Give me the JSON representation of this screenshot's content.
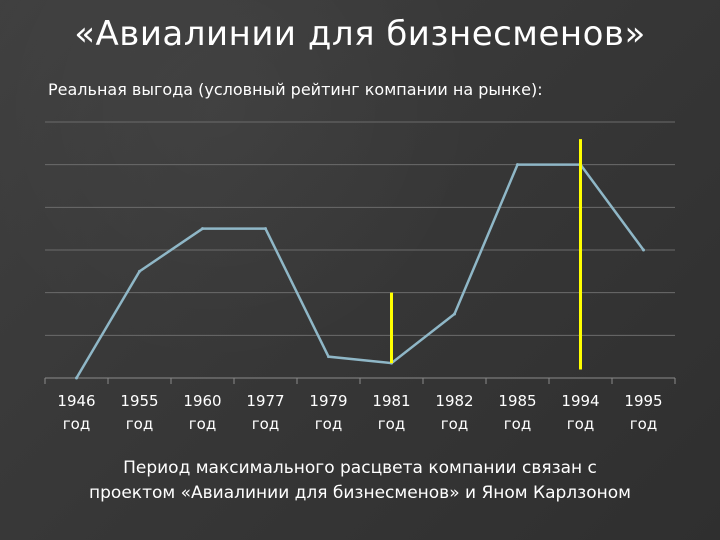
{
  "slide": {
    "title": "«Авиалинии для бизнесменов»",
    "subtitle": "Реальная выгода (условный рейтинг компании на рынке):",
    "footer_line1": "Период максимального расцвета компании связан с",
    "footer_line2": "проектом «Авиалинии для бизнесменов» и Яном Карлзоном"
  },
  "colors": {
    "background": "#3a3a3a",
    "line": "#8fb7c7",
    "grid": "#6b6b6b",
    "highlight": "#ffff00",
    "text": "#ffffff"
  },
  "chart_data": {
    "type": "line",
    "title": "",
    "xlabel": "",
    "ylabel": "",
    "grid": true,
    "ylim": [
      0,
      6
    ],
    "categories": [
      {
        "year": "1946",
        "unit": "год"
      },
      {
        "year": "1955",
        "unit": "год"
      },
      {
        "year": "1960",
        "unit": "год"
      },
      {
        "year": "1977",
        "unit": "год"
      },
      {
        "year": "1979",
        "unit": "год"
      },
      {
        "year": "1981",
        "unit": "год"
      },
      {
        "year": "1982",
        "unit": "год"
      },
      {
        "year": "1985",
        "unit": "год"
      },
      {
        "year": "1994",
        "unit": "год"
      },
      {
        "year": "1995",
        "unit": "год"
      }
    ],
    "series": [
      {
        "values": [
          0,
          2.5,
          3.5,
          3.5,
          0.5,
          0.35,
          1.5,
          5,
          5,
          3
        ]
      }
    ],
    "highlights": [
      {
        "category": "1981",
        "from": 0.35,
        "to": 2.0
      },
      {
        "category": "1994",
        "from": 0.2,
        "to": 5.6
      }
    ]
  }
}
